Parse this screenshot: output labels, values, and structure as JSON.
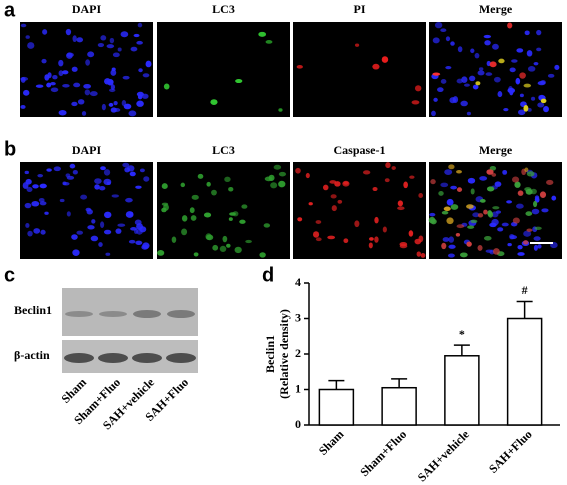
{
  "panel_a": {
    "label": "a",
    "channels": [
      "DAPI",
      "LC3",
      "PI",
      "Merge"
    ]
  },
  "panel_b": {
    "label": "b",
    "channels": [
      "DAPI",
      "LC3",
      "Caspase-1",
      "Merge"
    ]
  },
  "panel_c": {
    "label": "c",
    "rows": [
      "Beclin1",
      "β-actin"
    ],
    "lanes": [
      "Sham",
      "Sham+Fluo",
      "SAH+vehicle",
      "SAH+Fluo"
    ]
  },
  "chart_data": {
    "type": "bar",
    "panel_label": "d",
    "y_label": [
      "Beclin1",
      "(Relative density)"
    ],
    "categories": [
      "Sham",
      "Sham+Fluo",
      "SAH+vehicle",
      "SAH+Fluo"
    ],
    "values": [
      1.0,
      1.05,
      1.95,
      3.0
    ],
    "errors": [
      0.25,
      0.25,
      0.3,
      0.48
    ],
    "value_annotations": [
      null,
      null,
      "*",
      "#"
    ],
    "color": "#ffffff",
    "ylim": [
      0,
      4
    ],
    "yticks": [
      0,
      1,
      2,
      3,
      4
    ]
  }
}
